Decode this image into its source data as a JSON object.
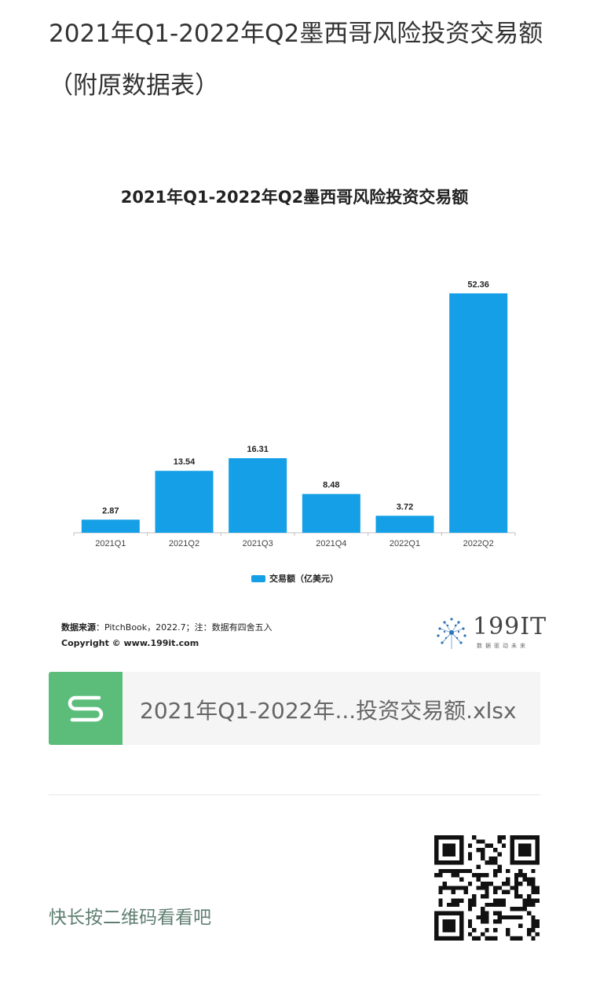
{
  "article": {
    "title": "2021年Q1-2022年Q2墨西哥风险投资交易额（附原数据表）"
  },
  "chart_data": {
    "type": "bar",
    "title": "2021年Q1-2022年Q2墨西哥风险投资交易额",
    "categories": [
      "2021Q1",
      "2021Q2",
      "2021Q3",
      "2021Q4",
      "2022Q1",
      "2022Q2"
    ],
    "series": [
      {
        "name": "交易额（亿美元）",
        "values": [
          2.87,
          13.54,
          16.31,
          8.48,
          3.72,
          52.36
        ]
      }
    ],
    "value_labels": [
      "2.87",
      "13.54",
      "16.31",
      "8.48",
      "3.72",
      "52.36"
    ],
    "ylim": [
      0,
      55
    ],
    "grid": false,
    "legend": "bottom",
    "bar_color": "#149fe6"
  },
  "chart_footer": {
    "source_label": "数据来源",
    "source_text": "：PitchBook，2022.7；注：数据有四舍五入",
    "copyright": "Copyright © www.199it.com",
    "brand": "199IT",
    "brand_slogan": "数据驱动未来"
  },
  "attachment": {
    "icon": "spreadsheet-s-icon",
    "filename": "2021年Q1-2022年...投资交易额.xlsx"
  },
  "qr": {
    "prompt": "快长按二维码看看吧",
    "icon": "qr-code-icon"
  }
}
